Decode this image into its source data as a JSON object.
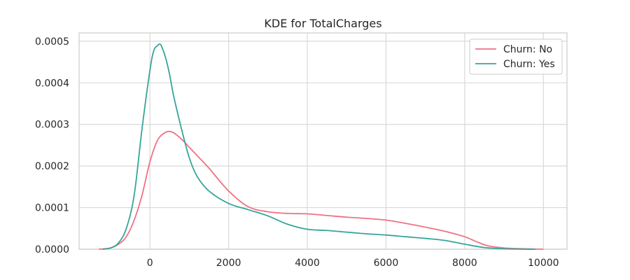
{
  "chart_data": {
    "type": "line",
    "title": "KDE for TotalCharges",
    "xlabel": "",
    "ylabel": "",
    "xlim": [
      -1800,
      10600
    ],
    "ylim": [
      0,
      0.00052
    ],
    "x_ticks": [
      0,
      2000,
      4000,
      6000,
      8000,
      10000
    ],
    "x_tick_labels": [
      "0",
      "2000",
      "4000",
      "6000",
      "8000",
      "10000"
    ],
    "y_ticks": [
      0,
      0.0001,
      0.0002,
      0.0003,
      0.0004,
      0.0005
    ],
    "y_tick_labels": [
      "0.0000",
      "0.0001",
      "0.0002",
      "0.0003",
      "0.0004",
      "0.0005"
    ],
    "grid": true,
    "legend_position": "top-right",
    "series": [
      {
        "name": "Churn: No",
        "color": "#f07185",
        "x": [
          -1300,
          -1000,
          -800,
          -600,
          -400,
          -200,
          0,
          200,
          400,
          500,
          600,
          800,
          1000,
          1200,
          1500,
          2000,
          2500,
          3000,
          3500,
          4000,
          4500,
          5000,
          5500,
          6000,
          6500,
          7000,
          7500,
          8000,
          8300,
          8600,
          9000,
          9500,
          10000
        ],
        "y": [
          0.0,
          3e-06,
          1.2e-05,
          3e-05,
          7e-05,
          0.00013,
          0.00021,
          0.000263,
          0.000281,
          0.000283,
          0.00028,
          0.000265,
          0.000245,
          0.000225,
          0.000195,
          0.00014,
          0.000102,
          9e-05,
          8.6e-05,
          8.5e-05,
          8.1e-05,
          7.7e-05,
          7.4e-05,
          7e-05,
          6.2e-05,
          5.3e-05,
          4.3e-05,
          3e-05,
          1.8e-05,
          8e-06,
          3e-06,
          1e-06,
          0.0
        ]
      },
      {
        "name": "Churn: Yes",
        "color": "#36a59a",
        "x": [
          -1200,
          -1000,
          -800,
          -600,
          -400,
          -200,
          0,
          100,
          200,
          250,
          300,
          400,
          500,
          600,
          800,
          1000,
          1200,
          1500,
          2000,
          2500,
          3000,
          3500,
          4000,
          4500,
          5000,
          5500,
          6000,
          6500,
          7000,
          7500,
          8000,
          8500,
          9000,
          9500,
          9800
        ],
        "y": [
          0.0,
          3e-06,
          1.5e-05,
          5e-05,
          0.00013,
          0.00029,
          0.00043,
          0.000478,
          0.00049,
          0.000493,
          0.000487,
          0.00046,
          0.00042,
          0.00037,
          0.00029,
          0.00022,
          0.000175,
          0.00014,
          0.00011,
          9.5e-05,
          8e-05,
          6e-05,
          4.8e-05,
          4.5e-05,
          4.1e-05,
          3.7e-05,
          3.4e-05,
          3e-05,
          2.6e-05,
          2.1e-05,
          1.2e-05,
          4e-06,
          1e-06,
          0.0,
          0.0
        ]
      }
    ]
  }
}
